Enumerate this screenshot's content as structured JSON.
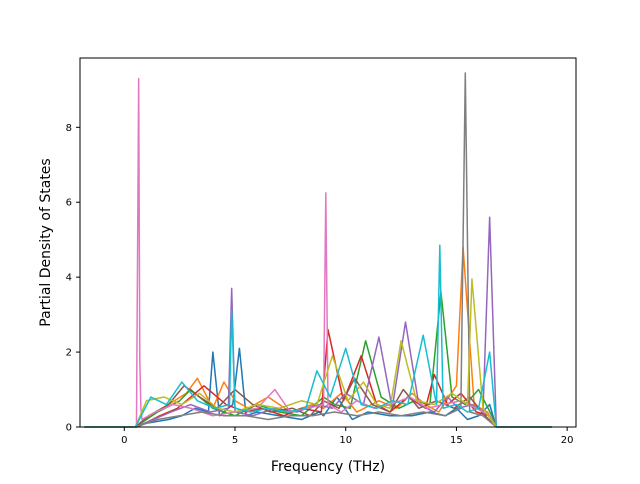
{
  "chart_data": {
    "type": "line",
    "title": "",
    "xlabel": "Frequency (THz)",
    "ylabel": "Partial Density of States",
    "xlim": [
      -2.0,
      20.4
    ],
    "ylim": [
      0,
      9.85
    ],
    "xticks": [
      0,
      5,
      10,
      15,
      20
    ],
    "xtick_labels": [
      "0",
      "5",
      "10",
      "15",
      "20"
    ],
    "yticks": [
      0,
      2,
      4,
      6,
      8
    ],
    "ytick_labels": [
      "0",
      "2",
      "4",
      "6",
      "8"
    ],
    "grid": false,
    "legend": "none",
    "series_colors": [
      "#1f77b4",
      "#ff7f0e",
      "#2ca02c",
      "#d62728",
      "#9467bd",
      "#8c564b",
      "#e377c2",
      "#7f7f7f",
      "#bcbd22",
      "#17becf"
    ],
    "series": [
      {
        "color": "#1f77b4",
        "x": [
          -1.8,
          0.5,
          1.0,
          2.0,
          2.6,
          3.2,
          3.8,
          4.0,
          4.3,
          4.9,
          5.2,
          5.5,
          6.0,
          7.0,
          8.0,
          8.8,
          9.0,
          9.6,
          10.3,
          11.0,
          12.0,
          13.0,
          13.8,
          14.5,
          15.0,
          15.5,
          16.0,
          16.5,
          16.8,
          19.3
        ],
        "y": [
          0,
          0,
          0.1,
          0.2,
          0.3,
          0.5,
          0.4,
          2.0,
          0.3,
          0.6,
          2.1,
          0.3,
          0.4,
          0.3,
          0.2,
          0.4,
          0.3,
          0.8,
          0.2,
          0.4,
          0.3,
          0.3,
          0.4,
          0.3,
          0.5,
          0.2,
          0.3,
          0.6,
          0,
          0
        ]
      },
      {
        "color": "#ff7f0e",
        "x": [
          -1.8,
          0.5,
          1.2,
          2.0,
          2.8,
          3.3,
          4.0,
          4.5,
          5.0,
          5.6,
          6.5,
          7.5,
          8.5,
          9.0,
          9.8,
          10.5,
          11.5,
          12.3,
          13.0,
          13.6,
          14.2,
          15.0,
          15.3,
          15.8,
          16.4,
          16.8,
          19.3
        ],
        "y": [
          0,
          0,
          0.3,
          0.6,
          0.9,
          1.3,
          0.5,
          1.2,
          0.7,
          0.5,
          0.8,
          0.4,
          0.6,
          0.5,
          0.9,
          0.4,
          0.7,
          0.5,
          0.9,
          0.6,
          0.4,
          1.1,
          4.8,
          0.6,
          0.4,
          0,
          0
        ]
      },
      {
        "color": "#2ca02c",
        "x": [
          -1.8,
          0.5,
          1.5,
          2.5,
          3.0,
          4.0,
          5.0,
          6.0,
          7.0,
          8.0,
          9.0,
          9.5,
          10.2,
          10.9,
          11.6,
          12.4,
          13.1,
          13.8,
          14.3,
          14.8,
          15.4,
          16.0,
          16.6,
          16.8,
          19.3
        ],
        "y": [
          0,
          0,
          0.4,
          0.7,
          1.0,
          0.5,
          0.3,
          0.6,
          0.4,
          0.3,
          0.8,
          0.6,
          0.5,
          2.3,
          0.8,
          0.5,
          0.7,
          0.6,
          3.6,
          0.8,
          0.6,
          1.0,
          0.3,
          0,
          0
        ]
      },
      {
        "color": "#d62728",
        "x": [
          -1.8,
          0.6,
          1.6,
          2.4,
          3.0,
          3.6,
          4.6,
          5.5,
          6.2,
          7.2,
          8.0,
          8.9,
          9.2,
          9.9,
          10.7,
          11.4,
          12.0,
          12.8,
          13.6,
          14.0,
          14.6,
          15.2,
          15.9,
          16.5,
          16.8,
          19.3
        ],
        "y": [
          0,
          0,
          0.3,
          0.5,
          0.8,
          1.1,
          0.6,
          0.4,
          0.5,
          0.3,
          0.5,
          0.4,
          2.6,
          0.7,
          1.9,
          0.6,
          0.4,
          0.8,
          0.5,
          1.4,
          0.6,
          0.9,
          0.4,
          0.3,
          0,
          0
        ]
      },
      {
        "color": "#9467bd",
        "x": [
          -1.8,
          0.5,
          1.3,
          2.1,
          3.0,
          3.9,
          4.7,
          4.85,
          5.0,
          5.8,
          6.8,
          7.8,
          8.7,
          9.4,
          10.0,
          10.8,
          11.5,
          12.1,
          12.7,
          13.3,
          14.0,
          14.6,
          15.1,
          15.7,
          16.2,
          16.5,
          16.8,
          19.3
        ],
        "y": [
          0,
          0,
          0.2,
          0.4,
          0.6,
          0.4,
          0.5,
          3.7,
          0.4,
          0.3,
          0.5,
          0.4,
          0.6,
          0.5,
          0.9,
          0.6,
          2.4,
          0.5,
          2.8,
          0.6,
          0.4,
          0.8,
          0.5,
          0.6,
          0.4,
          5.6,
          0,
          0
        ]
      },
      {
        "color": "#8c564b",
        "x": [
          -1.8,
          0.5,
          1.1,
          2.0,
          2.7,
          3.4,
          4.2,
          5.0,
          5.8,
          6.6,
          7.6,
          8.4,
          9.0,
          9.7,
          10.4,
          11.2,
          12.0,
          12.6,
          13.3,
          14.1,
          14.9,
          15.6,
          16.3,
          16.8,
          19.3
        ],
        "y": [
          0,
          0,
          0.3,
          0.6,
          1.1,
          0.8,
          0.5,
          1.0,
          0.6,
          0.4,
          0.5,
          0.3,
          0.7,
          0.5,
          1.3,
          0.6,
          0.4,
          1.0,
          0.5,
          0.7,
          0.5,
          0.8,
          0.3,
          0,
          0
        ]
      },
      {
        "color": "#e377c2",
        "x": [
          -1.8,
          0.55,
          0.65,
          0.7,
          0.75,
          0.8,
          1.4,
          2.2,
          3.0,
          4.0,
          5.0,
          6.0,
          6.8,
          7.5,
          8.3,
          9.0,
          9.1,
          9.2,
          9.8,
          10.5,
          11.3,
          12.0,
          12.9,
          13.7,
          14.4,
          15.2,
          15.9,
          16.5,
          16.8,
          19.3
        ],
        "y": [
          0,
          0,
          9.3,
          1.8,
          0.5,
          0.2,
          0.4,
          0.6,
          0.5,
          0.3,
          0.4,
          0.5,
          1.0,
          0.4,
          0.5,
          0.6,
          6.25,
          0.6,
          0.4,
          0.7,
          0.5,
          0.6,
          0.8,
          0.5,
          0.6,
          0.7,
          0.5,
          0.3,
          0,
          0
        ]
      },
      {
        "color": "#7f7f7f",
        "x": [
          -1.8,
          0.5,
          1.5,
          2.5,
          3.5,
          4.5,
          5.5,
          6.5,
          7.5,
          8.5,
          9.5,
          10.5,
          11.5,
          12.5,
          13.5,
          14.5,
          15.2,
          15.4,
          15.6,
          16.2,
          16.8,
          19.3
        ],
        "y": [
          0,
          0,
          0.2,
          0.3,
          0.4,
          0.3,
          0.3,
          0.2,
          0.3,
          0.3,
          0.4,
          0.3,
          0.4,
          0.3,
          0.4,
          0.3,
          0.5,
          9.45,
          0.4,
          0.3,
          0,
          0
        ]
      },
      {
        "color": "#bcbd22",
        "x": [
          -1.8,
          0.5,
          1.0,
          1.8,
          2.6,
          3.4,
          4.2,
          5.0,
          6.0,
          7.0,
          8.0,
          8.7,
          9.4,
          10.1,
          10.8,
          11.4,
          12.0,
          12.5,
          13.2,
          14.0,
          14.8,
          15.5,
          15.7,
          16.2,
          16.8,
          19.3
        ],
        "y": [
          0,
          0,
          0.7,
          0.8,
          0.6,
          0.9,
          0.5,
          0.4,
          0.6,
          0.5,
          0.7,
          0.6,
          1.9,
          0.7,
          1.2,
          0.6,
          0.5,
          2.3,
          0.7,
          0.6,
          0.9,
          0.6,
          3.95,
          0.5,
          0,
          0
        ]
      },
      {
        "color": "#17becf",
        "x": [
          -1.8,
          0.5,
          1.2,
          1.9,
          2.6,
          3.3,
          4.1,
          4.75,
          4.85,
          5.0,
          5.7,
          6.5,
          7.4,
          8.2,
          8.7,
          9.3,
          10.0,
          10.7,
          11.4,
          12.1,
          12.8,
          13.5,
          14.1,
          14.25,
          14.4,
          15.0,
          15.5,
          16.0,
          16.5,
          16.8,
          19.3
        ],
        "y": [
          0,
          0,
          0.8,
          0.6,
          1.2,
          0.7,
          0.5,
          0.6,
          3.1,
          0.5,
          0.4,
          0.5,
          0.4,
          0.5,
          1.5,
          0.8,
          2.1,
          0.6,
          0.5,
          0.7,
          0.6,
          2.45,
          0.6,
          4.85,
          0.5,
          0.6,
          0.4,
          0.5,
          2.0,
          0,
          0
        ]
      }
    ]
  }
}
